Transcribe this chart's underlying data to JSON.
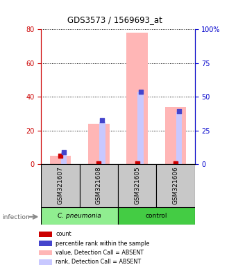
{
  "title": "GDS3573 / 1569693_at",
  "samples": [
    "GSM321607",
    "GSM321608",
    "GSM321605",
    "GSM321606"
  ],
  "bar_values_pink": [
    5.0,
    24.0,
    78.0,
    34.0
  ],
  "bar_values_rank_pink": [
    7.0,
    25.0,
    43.0,
    31.0
  ],
  "dot_red": [
    5.0,
    0.5,
    0.5,
    0.5
  ],
  "dot_blue": [
    7.0,
    26.0,
    43.0,
    31.5
  ],
  "left_ylim": [
    0,
    80
  ],
  "right_ylim": [
    0,
    100
  ],
  "left_yticks": [
    0,
    20,
    40,
    60,
    80
  ],
  "right_yticks": [
    0,
    25,
    50,
    75,
    100
  ],
  "right_yticklabels": [
    "0",
    "25",
    "50",
    "75",
    "100%"
  ],
  "left_axis_color": "#cc0000",
  "right_axis_color": "#0000cc",
  "grid_color": "#000000",
  "bar_pink_color": "#ffb6b6",
  "rank_bar_color": "#c8c8ff",
  "dot_red_color": "#cc0000",
  "dot_blue_color": "#4444cc",
  "bg_color": "#ffffff",
  "group1_color": "#90ee90",
  "group2_color": "#44cc44",
  "sample_box_color": "#c8c8c8",
  "legend_items": [
    {
      "color": "#cc0000",
      "label": "count"
    },
    {
      "color": "#4444cc",
      "label": "percentile rank within the sample"
    },
    {
      "color": "#ffb6b6",
      "label": "value, Detection Call = ABSENT"
    },
    {
      "color": "#c8c8ff",
      "label": "rank, Detection Call = ABSENT"
    }
  ]
}
